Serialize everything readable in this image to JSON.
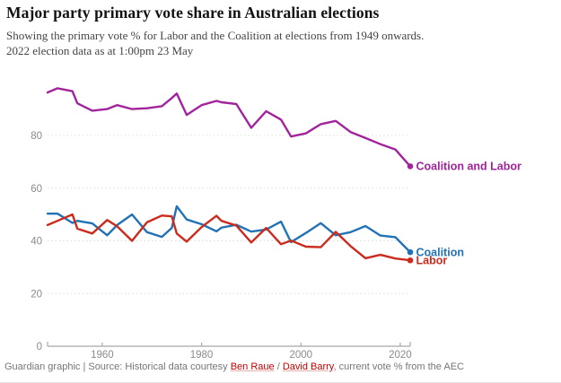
{
  "header": {
    "title": "Major party primary vote share in Australian elections",
    "subtitle_line1": "Showing the primary vote % for Labor and the Coalition at elections from 1949 onwards.",
    "subtitle_line2": "2022 election data as at 1:00pm 23 May"
  },
  "chart_data": {
    "type": "line",
    "x": [
      1949,
      1951,
      1954,
      1955,
      1958,
      1961,
      1963,
      1966,
      1969,
      1972,
      1974,
      1975,
      1977,
      1980,
      1983,
      1984,
      1987,
      1990,
      1993,
      1996,
      1998,
      2001,
      2004,
      2007,
      2010,
      2013,
      2016,
      2019,
      2022
    ],
    "series": [
      {
        "name": "Coalition and Labor",
        "color": "#a1249c",
        "values": [
          96.3,
          97.9,
          96.8,
          92.2,
          89.4,
          90.0,
          91.5,
          90.0,
          90.3,
          91.1,
          94.2,
          95.9,
          87.8,
          91.5,
          93.1,
          92.6,
          91.9,
          82.9,
          89.2,
          86.0,
          79.6,
          80.8,
          84.3,
          85.5,
          81.3,
          79.0,
          76.7,
          74.7,
          68.3
        ]
      },
      {
        "name": "Coalition",
        "color": "#2272b6",
        "values": [
          50.3,
          50.3,
          46.8,
          47.6,
          46.6,
          42.1,
          46.0,
          50.0,
          43.3,
          41.5,
          44.9,
          53.1,
          48.1,
          46.3,
          43.6,
          45.0,
          46.1,
          43.5,
          44.3,
          47.3,
          39.5,
          43.0,
          46.7,
          42.1,
          43.3,
          45.6,
          42.0,
          41.4,
          35.7
        ]
      },
      {
        "name": "Labor",
        "color": "#cb2b1d",
        "values": [
          46.0,
          47.6,
          50.0,
          44.6,
          42.8,
          47.9,
          45.5,
          40.0,
          47.0,
          49.6,
          49.3,
          42.8,
          39.7,
          45.2,
          49.5,
          47.6,
          45.8,
          39.4,
          44.9,
          38.7,
          40.1,
          37.8,
          37.6,
          43.4,
          38.0,
          33.4,
          34.7,
          33.3,
          32.6
        ]
      }
    ],
    "title": "Major party primary vote share in Australian elections",
    "xlabel": "",
    "ylabel": "",
    "xlim": [
      1949,
      2022
    ],
    "ylim": [
      0,
      100
    ],
    "xticks": [
      1960,
      1980,
      2000,
      2020
    ],
    "yticks": [
      0,
      20,
      40,
      60,
      80
    ],
    "grid": "dotted-horizontal",
    "legend_position": "end-of-line-labels",
    "axis_color": "#a8a8a8",
    "gridline_color": "#dcdcdc",
    "tick_label_color": "#8b8b8b"
  },
  "footer": {
    "prefix": "Guardian graphic | Source: Historical data courtesy ",
    "link1": "Ben Raue",
    "separator": " / ",
    "link2": "David Barry",
    "suffix": ", current vote % from the AEC",
    "link_color": "#c70000"
  }
}
